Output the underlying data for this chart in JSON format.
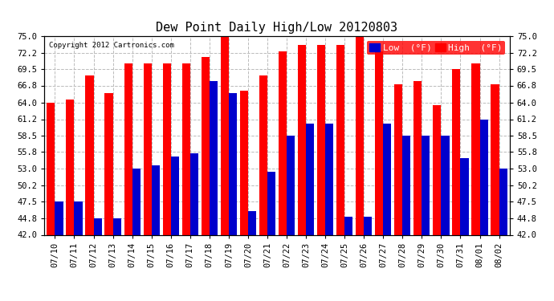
{
  "title": "Dew Point Daily High/Low 20120803",
  "copyright": "Copyright 2012 Cartronics.com",
  "dates": [
    "07/10",
    "07/11",
    "07/12",
    "07/13",
    "07/14",
    "07/15",
    "07/16",
    "07/17",
    "07/18",
    "07/19",
    "07/20",
    "07/21",
    "07/22",
    "07/23",
    "07/24",
    "07/25",
    "07/26",
    "07/27",
    "07/28",
    "07/29",
    "07/30",
    "07/31",
    "08/01",
    "08/02"
  ],
  "high": [
    64.0,
    64.5,
    68.5,
    65.5,
    70.5,
    70.5,
    70.5,
    70.5,
    71.5,
    75.0,
    66.0,
    68.5,
    72.5,
    73.5,
    73.5,
    73.5,
    75.5,
    72.5,
    67.0,
    67.5,
    63.5,
    69.5,
    70.5,
    67.0
  ],
  "low": [
    47.5,
    47.5,
    44.8,
    44.8,
    53.0,
    53.5,
    55.0,
    55.5,
    67.5,
    65.5,
    46.0,
    52.5,
    58.5,
    60.5,
    60.5,
    45.0,
    45.0,
    60.5,
    58.5,
    58.5,
    58.5,
    54.8,
    61.2,
    53.0
  ],
  "ylim": [
    42.0,
    75.0
  ],
  "yticks": [
    42.0,
    44.8,
    47.5,
    50.2,
    53.0,
    55.8,
    58.5,
    61.2,
    64.0,
    66.8,
    69.5,
    72.2,
    75.0
  ],
  "high_color": "#ff0000",
  "low_color": "#0000cc",
  "bg_color": "#ffffff",
  "grid_color": "#bbbbbb",
  "bar_width": 0.42,
  "title_fontsize": 11,
  "tick_fontsize": 7.5,
  "legend_fontsize": 8
}
